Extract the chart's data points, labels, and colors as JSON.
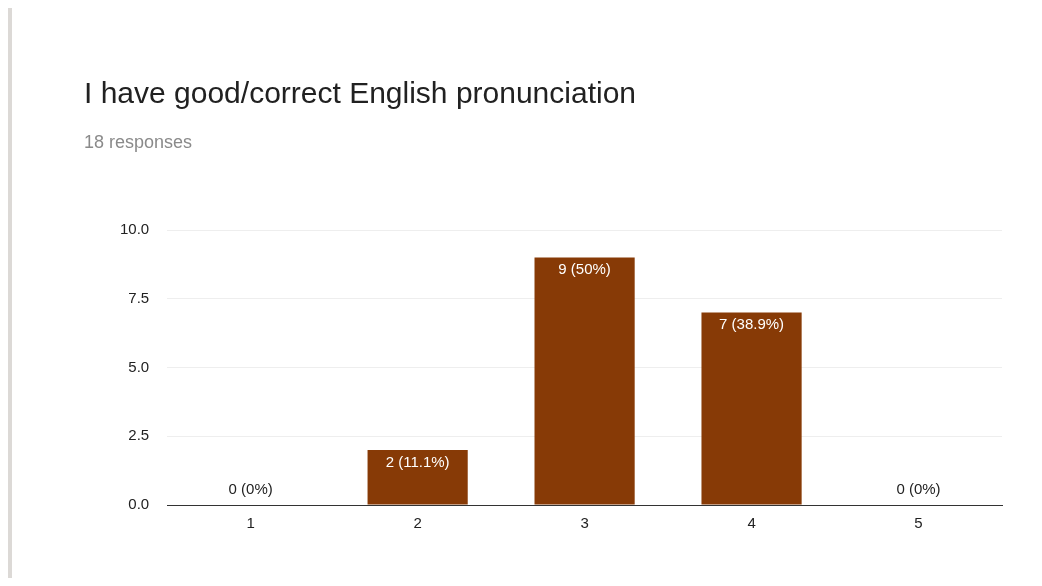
{
  "chart_data": {
    "type": "bar",
    "title": "I have good/correct English pronunciation",
    "subtitle": "18 responses",
    "categories": [
      "1",
      "2",
      "3",
      "4",
      "5"
    ],
    "values": [
      0,
      2,
      9,
      7,
      0
    ],
    "value_labels": [
      "0 (0%)",
      "2 (11.1%)",
      "9 (50%)",
      "7 (38.9%)",
      "0 (0%)"
    ],
    "color": "#873a06",
    "ylim": [
      0,
      10
    ],
    "yticks": [
      {
        "value": 0,
        "label": "0.0"
      },
      {
        "value": 2.5,
        "label": "2.5"
      },
      {
        "value": 5,
        "label": "5.0"
      },
      {
        "value": 7.5,
        "label": "7.5"
      },
      {
        "value": 10,
        "label": "10.0"
      }
    ],
    "grid": "y",
    "legend": false
  }
}
